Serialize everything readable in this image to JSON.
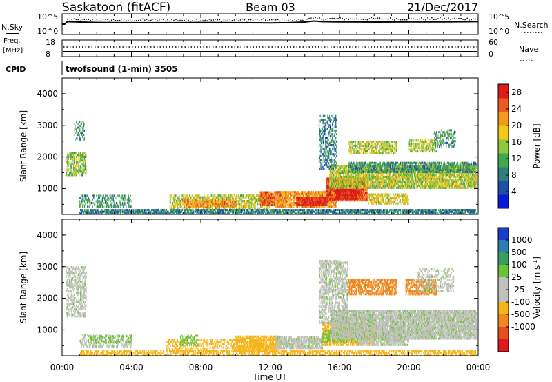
{
  "header": {
    "station": "Saskatoon (fitACF)",
    "beam": "Beam 03",
    "date": "21/Dec/2017"
  },
  "meta_panels": {
    "nsky_label": "N.Sky",
    "nsearch_label": "N.Search",
    "nsky_ticks": [
      "10^5",
      "10^0"
    ],
    "nsearch_ticks": [
      "10^5",
      "10^0"
    ],
    "freq_label_line1": "Freq.",
    "freq_label_line2": "[MHz]",
    "freq_ticks": [
      "18",
      "8"
    ],
    "nave_label": "Nave",
    "nave_ticks": [
      "60",
      "0"
    ],
    "cpid_label": "CPID",
    "cpid_value": "twofsound (1-min) 3505"
  },
  "chart_data": [
    {
      "type": "heatmap",
      "name": "power",
      "ylabel": "Slant Range [km]",
      "xlabel": "",
      "y_ticks": [
        "1000",
        "2000",
        "3000",
        "4000"
      ],
      "ylim": [
        180,
        4500
      ],
      "colorbar": {
        "label": "Power [dB]",
        "ticks": [
          "4",
          "8",
          "12",
          "16",
          "20",
          "24",
          "28"
        ],
        "range": [
          0,
          30
        ],
        "colors": [
          "#0a18d8",
          "#1f4fa8",
          "#2c7f7b",
          "#3ea84a",
          "#8fc83a",
          "#f3c816",
          "#f39a1c",
          "#e95c1e",
          "#dc1c1c"
        ]
      },
      "regions": [
        {
          "t0": 0.2,
          "t1": 1.4,
          "r0": 1400,
          "r1": 2100,
          "p": 14,
          "d": 0.55
        },
        {
          "t0": 0.7,
          "t1": 1.3,
          "r0": 2500,
          "r1": 3100,
          "p": 10,
          "d": 0.35
        },
        {
          "t0": 1.0,
          "t1": 4.0,
          "r0": 400,
          "r1": 800,
          "p": 10,
          "d": 0.35
        },
        {
          "t0": 6.2,
          "t1": 12.0,
          "r0": 350,
          "r1": 800,
          "p": 16,
          "d": 0.5
        },
        {
          "t0": 7.0,
          "t1": 10.0,
          "r0": 380,
          "r1": 620,
          "p": 22,
          "d": 0.6
        },
        {
          "t0": 11.4,
          "t1": 12.3,
          "r0": 450,
          "r1": 900,
          "p": 25,
          "d": 0.8
        },
        {
          "t0": 12.3,
          "t1": 15.8,
          "r0": 400,
          "r1": 900,
          "p": 22,
          "d": 0.75
        },
        {
          "t0": 13.5,
          "t1": 15.3,
          "r0": 450,
          "r1": 700,
          "p": 28,
          "d": 0.9
        },
        {
          "t0": 15.2,
          "t1": 17.6,
          "r0": 600,
          "r1": 1300,
          "p": 26,
          "d": 0.9
        },
        {
          "t0": 15.8,
          "t1": 17.0,
          "r0": 650,
          "r1": 1100,
          "p": 30,
          "d": 0.9
        },
        {
          "t0": 17.6,
          "t1": 20.0,
          "r0": 500,
          "r1": 800,
          "p": 18,
          "d": 0.55
        },
        {
          "t0": 15.4,
          "t1": 23.9,
          "r0": 1000,
          "r1": 1700,
          "p": 16,
          "d": 0.75
        },
        {
          "t0": 16.5,
          "t1": 23.9,
          "r0": 1500,
          "r1": 1800,
          "p": 10,
          "d": 0.6
        },
        {
          "t0": 14.8,
          "t1": 15.8,
          "r0": 1600,
          "r1": 3300,
          "p": 8,
          "d": 0.35
        },
        {
          "t0": 16.5,
          "t1": 19.3,
          "r0": 2100,
          "r1": 2500,
          "p": 16,
          "d": 0.55
        },
        {
          "t0": 20.0,
          "t1": 21.6,
          "r0": 2150,
          "r1": 2550,
          "p": 16,
          "d": 0.55
        },
        {
          "t0": 21.4,
          "t1": 22.7,
          "r0": 2300,
          "r1": 2850,
          "p": 10,
          "d": 0.3
        },
        {
          "t0": 1.0,
          "t1": 23.9,
          "r0": 180,
          "r1": 320,
          "p": 8,
          "d": 0.7
        }
      ]
    },
    {
      "type": "heatmap",
      "name": "velocity",
      "ylabel": "Slant Range [km]",
      "xlabel": "Time UT",
      "x_ticks": [
        "00:00",
        "04:00",
        "08:00",
        "12:00",
        "16:00",
        "20:00",
        "00:00"
      ],
      "y_ticks": [
        "1000",
        "2000",
        "3000",
        "4000"
      ],
      "ylim": [
        180,
        4500
      ],
      "colorbar": {
        "label": "Velocity [m s^-1]",
        "ticks": [
          "1000",
          "500",
          "100",
          "25",
          "-25",
          "-100",
          "-500",
          "-1000"
        ],
        "colors": [
          "#1a3ec8",
          "#2a7fb0",
          "#3a9c60",
          "#6cc234",
          "#c0c0bc",
          "#c0c0bc",
          "#f5b41a",
          "#f08820",
          "#e84d1c",
          "#dc1c1c"
        ]
      },
      "regions": [
        {
          "t0": 0.2,
          "t1": 1.4,
          "r0": 1400,
          "r1": 3000,
          "c": "#c0c0bc",
          "d": 0.45
        },
        {
          "t0": 1.0,
          "t1": 4.0,
          "r0": 450,
          "r1": 800,
          "c": "#c0c0bc",
          "d": 0.3
        },
        {
          "t0": 1.5,
          "t1": 4.0,
          "r0": 600,
          "r1": 800,
          "c": "#6cc234",
          "d": 0.3
        },
        {
          "t0": 6.0,
          "t1": 12.0,
          "r0": 300,
          "r1": 700,
          "c": "#f5b41a",
          "d": 0.4
        },
        {
          "t0": 6.8,
          "t1": 7.8,
          "r0": 500,
          "r1": 800,
          "c": "#6cc234",
          "d": 0.4
        },
        {
          "t0": 10.0,
          "t1": 12.5,
          "r0": 300,
          "r1": 800,
          "c": "#f5b41a",
          "d": 0.6
        },
        {
          "t0": 12.3,
          "t1": 15.0,
          "r0": 400,
          "r1": 800,
          "c": "#c0c0bc",
          "d": 0.7
        },
        {
          "t0": 15.0,
          "t1": 18.0,
          "r0": 500,
          "r1": 1200,
          "c": "#f5b41a",
          "d": 0.6
        },
        {
          "t0": 15.0,
          "t1": 17.0,
          "r0": 600,
          "r1": 1000,
          "c": "#6cc234",
          "d": 0.45
        },
        {
          "t0": 17.0,
          "t1": 20.0,
          "r0": 500,
          "r1": 800,
          "c": "#c0c0bc",
          "d": 0.6
        },
        {
          "t0": 15.5,
          "t1": 23.9,
          "r0": 700,
          "r1": 1600,
          "c": "#c0c0bc",
          "d": 0.85
        },
        {
          "t0": 14.8,
          "t1": 16.5,
          "r0": 1200,
          "r1": 3200,
          "c": "#c0c0bc",
          "d": 0.5
        },
        {
          "t0": 16.5,
          "t1": 19.3,
          "r0": 2100,
          "r1": 2600,
          "c": "#f08820",
          "d": 0.6
        },
        {
          "t0": 19.8,
          "t1": 21.6,
          "r0": 2100,
          "r1": 2600,
          "c": "#f08820",
          "d": 0.55
        },
        {
          "t0": 20.5,
          "t1": 22.6,
          "r0": 2200,
          "r1": 2900,
          "c": "#c0c0bc",
          "d": 0.3
        },
        {
          "t0": 1.0,
          "t1": 23.9,
          "r0": 180,
          "r1": 320,
          "c": "#f5b41a",
          "d": 0.55
        }
      ]
    },
    {
      "type": "line",
      "name": "n_sky",
      "x": [
        0,
        0.15,
        0.3,
        1,
        2,
        4,
        6,
        8,
        10,
        12,
        13,
        14,
        14.5,
        15,
        16,
        18,
        20,
        22,
        24
      ],
      "y": [
        0.5,
        0.5,
        0.62,
        0.6,
        0.58,
        0.57,
        0.57,
        0.58,
        0.57,
        0.56,
        0.57,
        0.6,
        0.65,
        0.62,
        0.61,
        0.6,
        0.61,
        0.61,
        0.62
      ]
    },
    {
      "type": "scatter",
      "name": "n_search",
      "x_range": [
        0,
        24
      ],
      "level": 0.72,
      "level_late": 0.78
    }
  ]
}
